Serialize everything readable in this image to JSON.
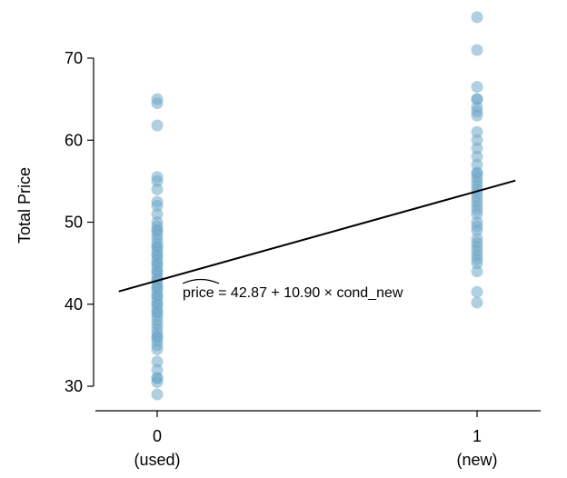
{
  "chart_data": {
    "type": "scatter",
    "ylabel": "Total Price",
    "xlabel": "",
    "ylim": [
      27,
      76
    ],
    "xlim": [
      -0.2,
      1.2
    ],
    "x_ticks": [
      {
        "value": 0,
        "label": "0",
        "sublabel": "(used)"
      },
      {
        "value": 1,
        "label": "1",
        "sublabel": "(new)"
      }
    ],
    "y_ticks": [
      30,
      40,
      50,
      60,
      70
    ],
    "grid": false,
    "point_color": "#6fa8c8",
    "series": [
      {
        "x": 0,
        "values": [
          29,
          30.5,
          31,
          31,
          32,
          33,
          34.5,
          35,
          35.5,
          36,
          36,
          36.5,
          37,
          37.5,
          38,
          38.5,
          39,
          39,
          39.5,
          40,
          40,
          40.5,
          41,
          41,
          41.5,
          42,
          42,
          42.5,
          43,
          43,
          43.5,
          44,
          44,
          44.5,
          45,
          45,
          45.5,
          46,
          46,
          46.5,
          47,
          47,
          47.5,
          48,
          48.5,
          49,
          49,
          49.5,
          50,
          51,
          52,
          52.5,
          54,
          55,
          55.5,
          61.8,
          64.5,
          65
        ]
      },
      {
        "x": 1,
        "values": [
          40.2,
          41.5,
          44,
          45,
          45.5,
          46,
          46.5,
          47,
          47.5,
          48,
          49,
          49.5,
          50,
          51,
          51.5,
          52,
          52.5,
          53,
          53.5,
          54,
          54.5,
          55,
          55.5,
          56,
          56,
          57,
          58,
          59,
          60,
          61,
          63,
          63.5,
          64,
          65,
          65,
          66.5,
          71,
          75
        ]
      }
    ],
    "regression": {
      "intercept": 42.87,
      "slope": 10.9,
      "x_range": [
        -0.12,
        1.12
      ],
      "equation_hat": "price",
      "equation_rest": " = 42.87 + 10.90 × cond_new"
    }
  }
}
